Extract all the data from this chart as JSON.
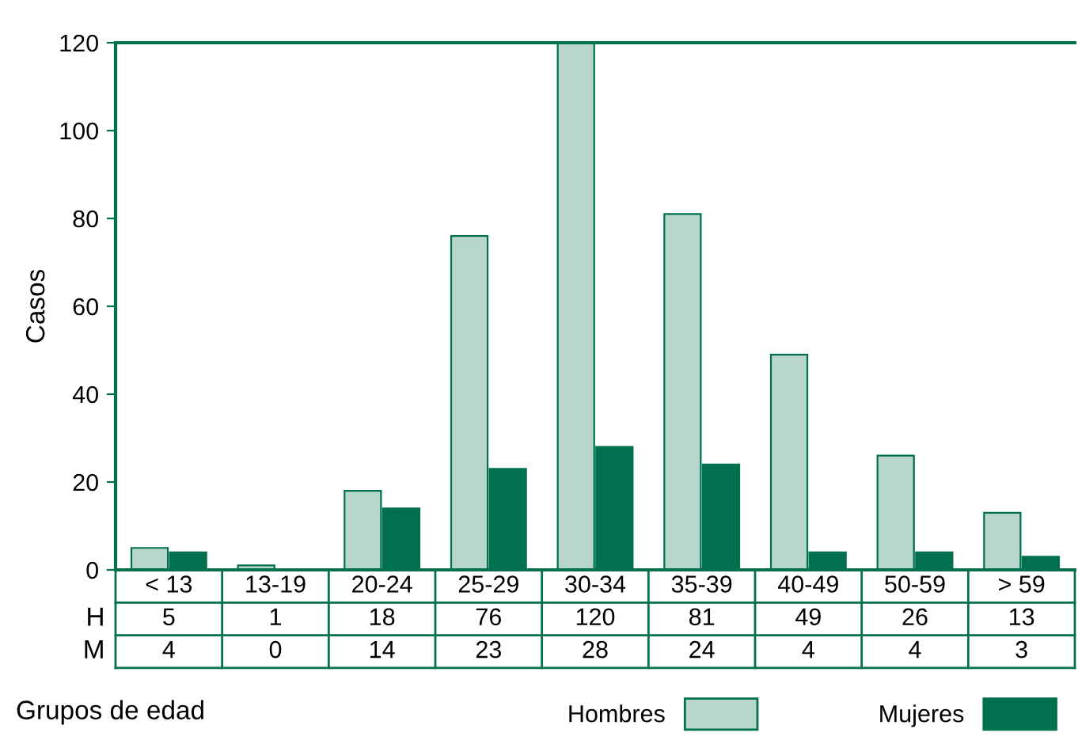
{
  "chart_data": {
    "type": "bar",
    "ylabel": "Casos",
    "xlabel": "Grupos de edad",
    "categories": [
      "< 13",
      "13-19",
      "20-24",
      "25-29",
      "30-34",
      "35-39",
      "40-49",
      "50-59",
      "> 59"
    ],
    "series": [
      {
        "name": "Hombres",
        "color": "#b9d6cc",
        "values": [
          5,
          1,
          18,
          76,
          120,
          81,
          49,
          26,
          13
        ]
      },
      {
        "name": "Mujeres",
        "color": "#00704f",
        "values": [
          4,
          0,
          14,
          23,
          28,
          24,
          4,
          4,
          3
        ]
      }
    ],
    "ylim": [
      0,
      120
    ],
    "yticks": [
      0,
      20,
      40,
      60,
      80,
      100,
      120
    ],
    "annotations": [
      "H",
      "M"
    ],
    "data_labels": true,
    "grid": false,
    "legend": "bottom right"
  }
}
